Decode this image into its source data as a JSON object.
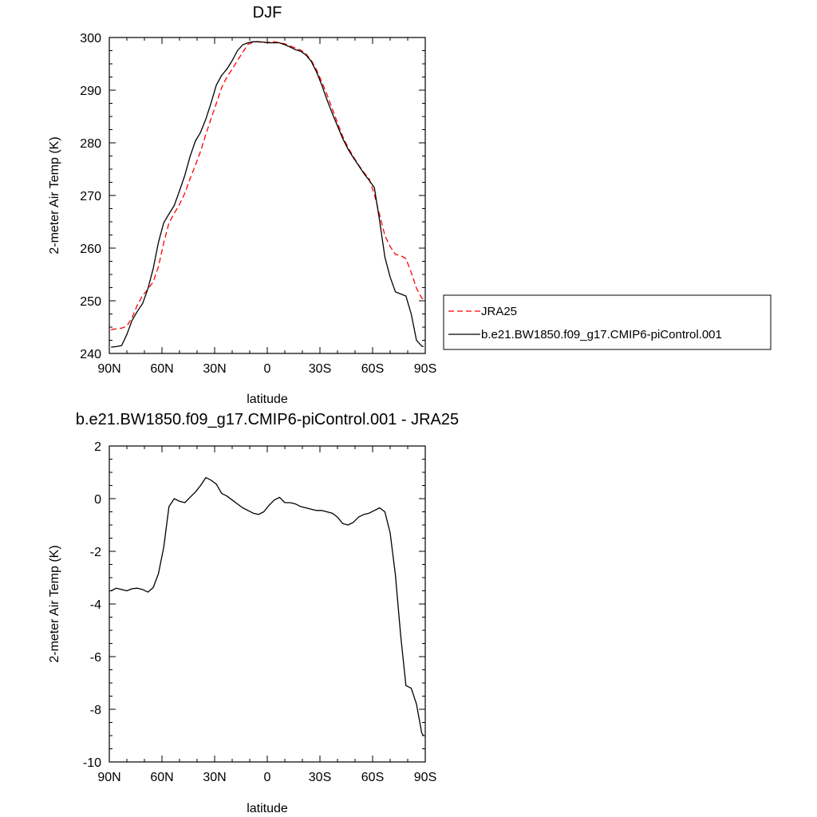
{
  "chart_data": [
    {
      "type": "line",
      "title": "DJF",
      "xlabel": "latitude",
      "ylabel": "2-meter Air Temp (K)",
      "xlim": [
        90,
        -90
      ],
      "ylim": [
        240,
        300
      ],
      "x_ticks": [
        90,
        60,
        30,
        0,
        -30,
        -60,
        -90
      ],
      "x_tick_labels": [
        "90N",
        "60N",
        "30N",
        "0",
        "30S",
        "60S",
        "90S"
      ],
      "y_ticks": [
        240,
        250,
        260,
        270,
        280,
        290,
        300
      ],
      "y_tick_labels": [
        "240",
        "250",
        "260",
        "270",
        "280",
        "290",
        "300"
      ],
      "legend_position": "right",
      "series": [
        {
          "name": "JRA25",
          "color": "#ff0000",
          "dash": "dashed",
          "x": [
            89,
            86,
            83,
            80,
            77,
            74,
            71,
            68,
            65,
            62,
            59,
            56,
            53,
            50,
            47,
            44,
            41,
            38,
            35,
            32,
            29,
            26,
            23,
            20,
            17,
            14,
            11,
            8,
            5,
            2,
            -1,
            -4,
            -7,
            -10,
            -13,
            -16,
            -19,
            -22,
            -25,
            -28,
            -31,
            -34,
            -37,
            -40,
            -43,
            -46,
            -49,
            -52,
            -55,
            -58,
            -61,
            -64,
            -67,
            -70,
            -73,
            -76,
            -79,
            -82,
            -85,
            -88,
            -89
          ],
          "values": [
            244.5,
            244.7,
            244.8,
            245.2,
            246.8,
            249.2,
            251.0,
            252.2,
            253.6,
            256.5,
            261.0,
            264.8,
            266.6,
            268.3,
            270.4,
            273.2,
            275.7,
            278.4,
            281.6,
            284.6,
            287.5,
            290.5,
            292.5,
            294.0,
            295.6,
            297.2,
            298.7,
            299.1,
            299.2,
            299.0,
            299.1,
            299.2,
            299.0,
            298.8,
            298.4,
            298.0,
            297.6,
            296.9,
            295.7,
            293.9,
            291.6,
            289.2,
            286.5,
            283.8,
            281.2,
            279.1,
            277.4,
            275.8,
            274.4,
            273.2,
            270.2,
            266.3,
            262.4,
            260.3,
            258.8,
            258.6,
            258.0,
            255.4,
            252.4,
            250.5,
            250.3
          ]
        },
        {
          "name": "b.e21.BW1850.f09_g17.CMIP6-piControl.001",
          "color": "#000000",
          "dash": "solid",
          "x": [
            89,
            86,
            83,
            80,
            77,
            74,
            71,
            68,
            65,
            62,
            59,
            56,
            53,
            50,
            47,
            44,
            41,
            38,
            35,
            32,
            29,
            26,
            23,
            20,
            17,
            14,
            11,
            8,
            5,
            2,
            -1,
            -4,
            -7,
            -10,
            -13,
            -16,
            -19,
            -22,
            -25,
            -28,
            -31,
            -34,
            -37,
            -40,
            -43,
            -46,
            -49,
            -52,
            -55,
            -58,
            -61,
            -64,
            -67,
            -70,
            -73,
            -76,
            -79,
            -82,
            -85,
            -88,
            -89
          ],
          "values": [
            241.2,
            241.3,
            241.5,
            243.6,
            246.3,
            248.0,
            249.5,
            252.3,
            256.1,
            261.1,
            264.8,
            266.5,
            268.1,
            270.9,
            273.8,
            277.4,
            280.3,
            282.0,
            284.5,
            287.6,
            291.0,
            292.8,
            294.0,
            295.6,
            297.5,
            298.6,
            299.0,
            299.2,
            299.2,
            299.1,
            299.0,
            299.0,
            299.0,
            298.6,
            298.2,
            297.7,
            297.4,
            296.7,
            295.5,
            293.5,
            291.0,
            288.2,
            285.6,
            283.2,
            280.8,
            278.8,
            277.2,
            275.7,
            274.2,
            272.9,
            271.5,
            265.2,
            258.3,
            254.5,
            251.7,
            251.3,
            250.9,
            247.5,
            242.5,
            241.4,
            241.3
          ]
        }
      ]
    },
    {
      "type": "line",
      "title": "b.e21.BW1850.f09_g17.CMIP6-piControl.001 - JRA25",
      "xlabel": "latitude",
      "ylabel": "2-meter Air Temp (K)",
      "xlim": [
        90,
        -90
      ],
      "ylim": [
        -10,
        2
      ],
      "x_ticks": [
        90,
        60,
        30,
        0,
        -30,
        -60,
        -90
      ],
      "x_tick_labels": [
        "90N",
        "60N",
        "30N",
        "0",
        "30S",
        "60S",
        "90S"
      ],
      "y_ticks": [
        -10,
        -8,
        -6,
        -4,
        -2,
        0,
        2
      ],
      "y_tick_labels": [
        "-10",
        "-8",
        "-6",
        "-4",
        "-2",
        "0",
        "2"
      ],
      "series": [
        {
          "color": "#000000",
          "dash": "solid",
          "x": [
            89,
            86,
            83,
            80,
            77,
            74,
            71,
            68,
            65,
            62,
            59,
            56,
            53,
            50,
            47,
            44,
            41,
            38,
            35,
            32,
            29,
            26,
            23,
            20,
            17,
            14,
            11,
            8,
            5,
            2,
            -1,
            -4,
            -7,
            -10,
            -13,
            -16,
            -19,
            -22,
            -25,
            -28,
            -31,
            -34,
            -37,
            -40,
            -43,
            -46,
            -49,
            -52,
            -55,
            -58,
            -61,
            -64,
            -67,
            -70,
            -73,
            -76,
            -79,
            -82,
            -85,
            -88,
            -89
          ],
          "values": [
            -3.5,
            -3.4,
            -3.45,
            -3.5,
            -3.42,
            -3.4,
            -3.45,
            -3.55,
            -3.38,
            -2.85,
            -1.85,
            -0.3,
            0.0,
            -0.1,
            -0.15,
            0.05,
            0.25,
            0.5,
            0.8,
            0.7,
            0.55,
            0.2,
            0.1,
            -0.05,
            -0.2,
            -0.35,
            -0.45,
            -0.55,
            -0.6,
            -0.5,
            -0.25,
            -0.05,
            0.05,
            -0.15,
            -0.15,
            -0.2,
            -0.3,
            -0.35,
            -0.4,
            -0.45,
            -0.45,
            -0.5,
            -0.55,
            -0.7,
            -0.95,
            -1.0,
            -0.9,
            -0.7,
            -0.6,
            -0.55,
            -0.45,
            -0.35,
            -0.5,
            -1.3,
            -2.9,
            -5.2,
            -7.1,
            -7.2,
            -7.8,
            -8.9,
            -9.0
          ]
        }
      ]
    }
  ]
}
